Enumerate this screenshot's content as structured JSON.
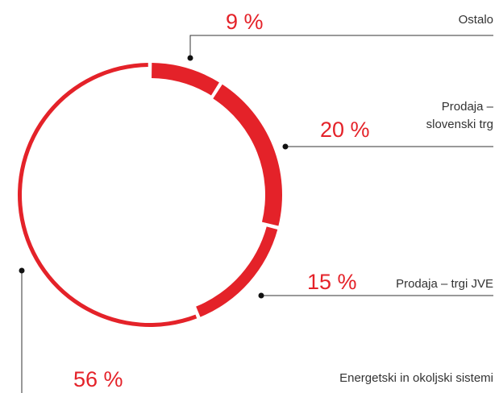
{
  "chart_data": {
    "type": "pie",
    "categories": [
      "Ostalo",
      "Prodaja – slovenski trg",
      "Prodaja – trgi JVE",
      "Energetski in okoljski sistemi"
    ],
    "values": [
      9,
      20,
      15,
      56
    ],
    "value_labels": [
      "9 %",
      "20 %",
      "15 %",
      "56 %"
    ],
    "color": "#e42229"
  }
}
